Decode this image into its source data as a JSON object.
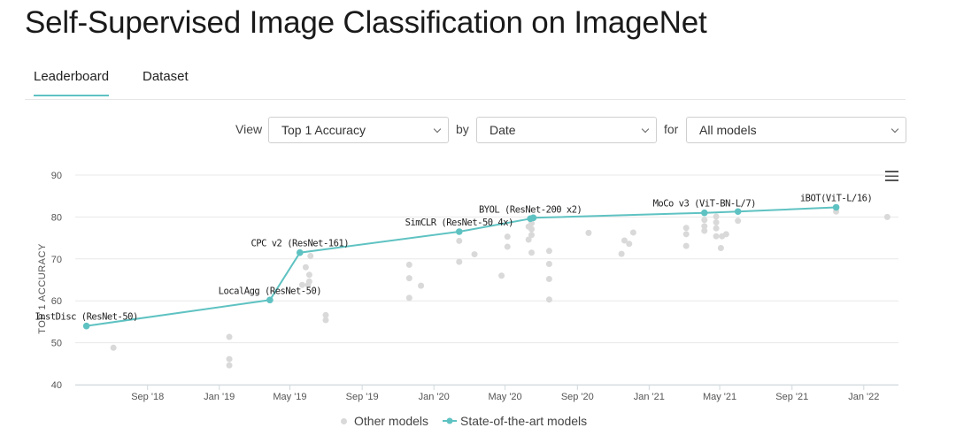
{
  "page": {
    "title": "Self-Supervised Image Classification on ImageNet"
  },
  "tabs": [
    {
      "label": "Leaderboard",
      "active": true
    },
    {
      "label": "Dataset",
      "active": false
    }
  ],
  "filters": {
    "view_label": "View",
    "view_value": "Top 1 Accuracy",
    "by_label": "by",
    "by_value": "Date",
    "for_label": "for",
    "for_value": "All models"
  },
  "colors": {
    "accent": "#5fc2c2",
    "other": "#d9d9d9",
    "grid": "#e8e8e8"
  },
  "icons": {
    "menu": "hamburger-menu-icon"
  },
  "chart_data": {
    "type": "scatter",
    "ylabel": "TOP 1 ACCURACY",
    "ylim": [
      40,
      90
    ],
    "yticks": [
      40,
      50,
      60,
      70,
      80,
      90
    ],
    "xlim": [
      "2018-05-01",
      "2022-03-01"
    ],
    "xticks": [
      {
        "date": "2018-09-01",
        "label": "Sep '18"
      },
      {
        "date": "2019-01-01",
        "label": "Jan '19"
      },
      {
        "date": "2019-05-01",
        "label": "May '19"
      },
      {
        "date": "2019-09-01",
        "label": "Sep '19"
      },
      {
        "date": "2020-01-01",
        "label": "Jan '20"
      },
      {
        "date": "2020-05-01",
        "label": "May '20"
      },
      {
        "date": "2020-09-01",
        "label": "Sep '20"
      },
      {
        "date": "2021-01-01",
        "label": "Jan '21"
      },
      {
        "date": "2021-05-01",
        "label": "May '21"
      },
      {
        "date": "2021-09-01",
        "label": "Sep '21"
      },
      {
        "date": "2022-01-01",
        "label": "Jan '22"
      }
    ],
    "legend": {
      "position": "bottom",
      "items": [
        "Other models",
        "State-of-the-art models"
      ]
    },
    "series": [
      {
        "name": "State-of-the-art models",
        "points": [
          {
            "x": "2018-05-20",
            "y": 54.0,
            "label": "InstDisc (ResNet-50)"
          },
          {
            "x": "2019-03-28",
            "y": 60.2,
            "label": "LocalAgg (ResNet-50)"
          },
          {
            "x": "2019-05-18",
            "y": 71.5,
            "label": "CPC v2 (ResNet-161)"
          },
          {
            "x": "2020-02-13",
            "y": 76.5,
            "label": "SimCLR (ResNet-50 4x)"
          },
          {
            "x": "2020-06-13",
            "y": 79.6,
            "label": "BYOL (ResNet-200 x2)"
          },
          {
            "x": "2020-06-18",
            "y": 79.8,
            "label": ""
          },
          {
            "x": "2021-04-05",
            "y": 81.0,
            "label": "MoCo v3 (ViT-BN-L/7)"
          },
          {
            "x": "2021-06-01",
            "y": 81.3,
            "label": ""
          },
          {
            "x": "2021-11-15",
            "y": 82.3,
            "label": "iBOT(ViT-L/16)"
          }
        ]
      },
      {
        "name": "Other models",
        "points": [
          {
            "x": "2018-07-05",
            "y": 48.8
          },
          {
            "x": "2019-01-18",
            "y": 51.4
          },
          {
            "x": "2019-01-18",
            "y": 46.1
          },
          {
            "x": "2019-01-18",
            "y": 44.6
          },
          {
            "x": "2019-05-22",
            "y": 63.8
          },
          {
            "x": "2019-05-28",
            "y": 68.0
          },
          {
            "x": "2019-06-05",
            "y": 70.7
          },
          {
            "x": "2019-06-03",
            "y": 66.2
          },
          {
            "x": "2019-06-03",
            "y": 64.6
          },
          {
            "x": "2019-06-01",
            "y": 63.8
          },
          {
            "x": "2019-07-01",
            "y": 56.6
          },
          {
            "x": "2019-07-01",
            "y": 55.4
          },
          {
            "x": "2019-11-20",
            "y": 68.6
          },
          {
            "x": "2019-11-20",
            "y": 65.4
          },
          {
            "x": "2019-11-20",
            "y": 60.7
          },
          {
            "x": "2019-12-10",
            "y": 63.6
          },
          {
            "x": "2020-02-13",
            "y": 74.3
          },
          {
            "x": "2020-02-13",
            "y": 69.3
          },
          {
            "x": "2020-03-10",
            "y": 71.1
          },
          {
            "x": "2020-04-25",
            "y": 66.0
          },
          {
            "x": "2020-05-05",
            "y": 75.3
          },
          {
            "x": "2020-05-05",
            "y": 72.9
          },
          {
            "x": "2020-06-10",
            "y": 77.7
          },
          {
            "x": "2020-06-10",
            "y": 74.6
          },
          {
            "x": "2020-06-15",
            "y": 78.5
          },
          {
            "x": "2020-06-15",
            "y": 77.1
          },
          {
            "x": "2020-06-15",
            "y": 75.7
          },
          {
            "x": "2020-06-15",
            "y": 71.5
          },
          {
            "x": "2020-07-15",
            "y": 71.9
          },
          {
            "x": "2020-07-15",
            "y": 68.8
          },
          {
            "x": "2020-07-15",
            "y": 65.2
          },
          {
            "x": "2020-07-15",
            "y": 60.3
          },
          {
            "x": "2020-09-20",
            "y": 76.2
          },
          {
            "x": "2020-11-20",
            "y": 74.4
          },
          {
            "x": "2020-11-28",
            "y": 73.6
          },
          {
            "x": "2020-12-05",
            "y": 76.3
          },
          {
            "x": "2020-11-15",
            "y": 71.2
          },
          {
            "x": "2021-03-05",
            "y": 77.4
          },
          {
            "x": "2021-03-05",
            "y": 75.9
          },
          {
            "x": "2021-03-05",
            "y": 73.1
          },
          {
            "x": "2021-04-05",
            "y": 79.3
          },
          {
            "x": "2021-04-05",
            "y": 77.8
          },
          {
            "x": "2021-04-05",
            "y": 76.7
          },
          {
            "x": "2021-04-25",
            "y": 80.1
          },
          {
            "x": "2021-04-25",
            "y": 78.7
          },
          {
            "x": "2021-04-25",
            "y": 77.3
          },
          {
            "x": "2021-04-25",
            "y": 75.4
          },
          {
            "x": "2021-05-03",
            "y": 72.6
          },
          {
            "x": "2021-05-05",
            "y": 75.4
          },
          {
            "x": "2021-05-12",
            "y": 75.9
          },
          {
            "x": "2021-06-01",
            "y": 79.1
          },
          {
            "x": "2021-11-15",
            "y": 81.3
          },
          {
            "x": "2022-02-10",
            "y": 80.0
          }
        ]
      }
    ]
  }
}
